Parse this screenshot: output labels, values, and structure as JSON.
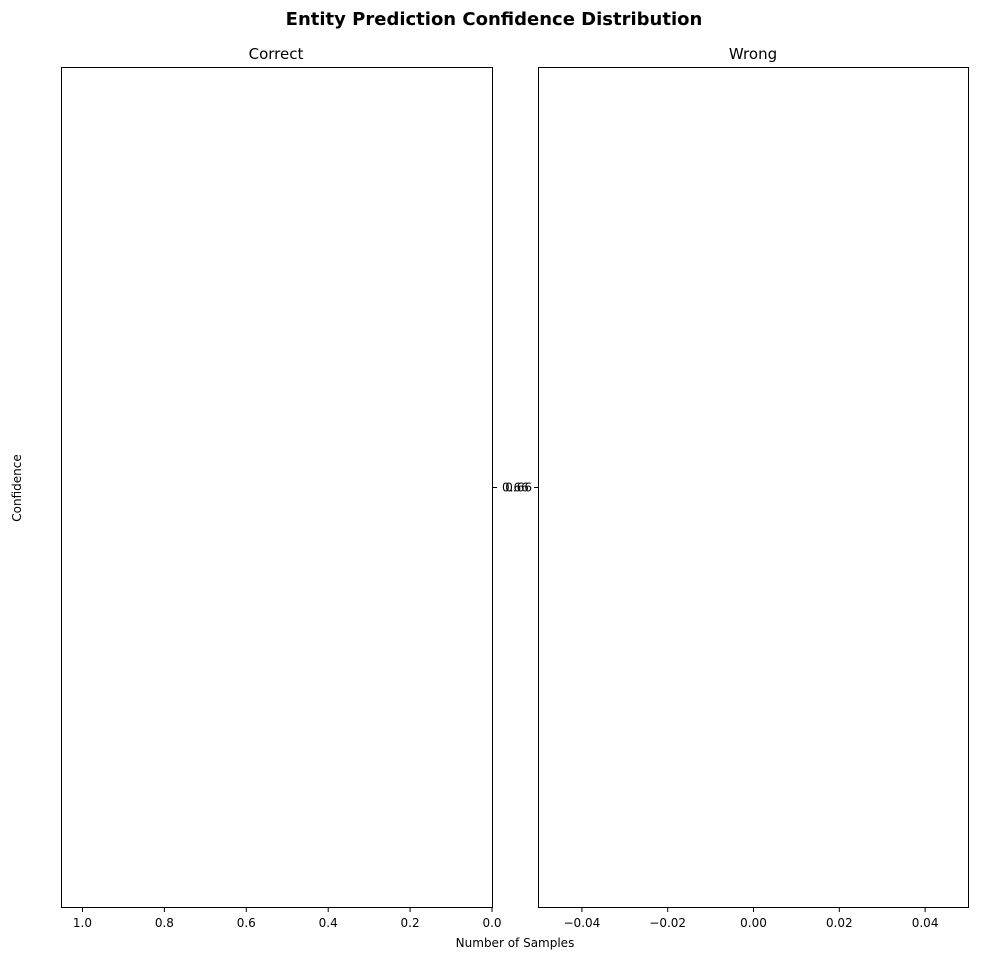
{
  "chart_data": {
    "type": "bar",
    "title": "Entity Prediction Confidence Distribution",
    "xlabel": "Number of Samples",
    "ylabel": "Confidence",
    "panels": [
      {
        "title": "Correct",
        "xlim": [
          1.05,
          0.0
        ],
        "xticks": [
          1.0,
          0.8,
          0.6,
          0.4,
          0.2,
          0.0
        ],
        "xtick_labels": [
          "1.0",
          "0.8",
          "0.6",
          "0.4",
          "0.2",
          "0.0"
        ],
        "yticks": [
          0.66
        ],
        "ytick_labels": [
          "0.66"
        ],
        "values": []
      },
      {
        "title": "Wrong",
        "xlim": [
          -0.05,
          0.05
        ],
        "xticks": [
          -0.04,
          -0.02,
          0.0,
          0.02,
          0.04
        ],
        "xtick_labels": [
          "−0.04",
          "−0.02",
          "0.00",
          "0.02",
          "0.04"
        ],
        "yticks": [
          0.66
        ],
        "ytick_labels": [
          "0.66"
        ],
        "values": []
      }
    ],
    "ylim": [
      0.61,
      0.71
    ],
    "grid": false,
    "legend": "none"
  }
}
